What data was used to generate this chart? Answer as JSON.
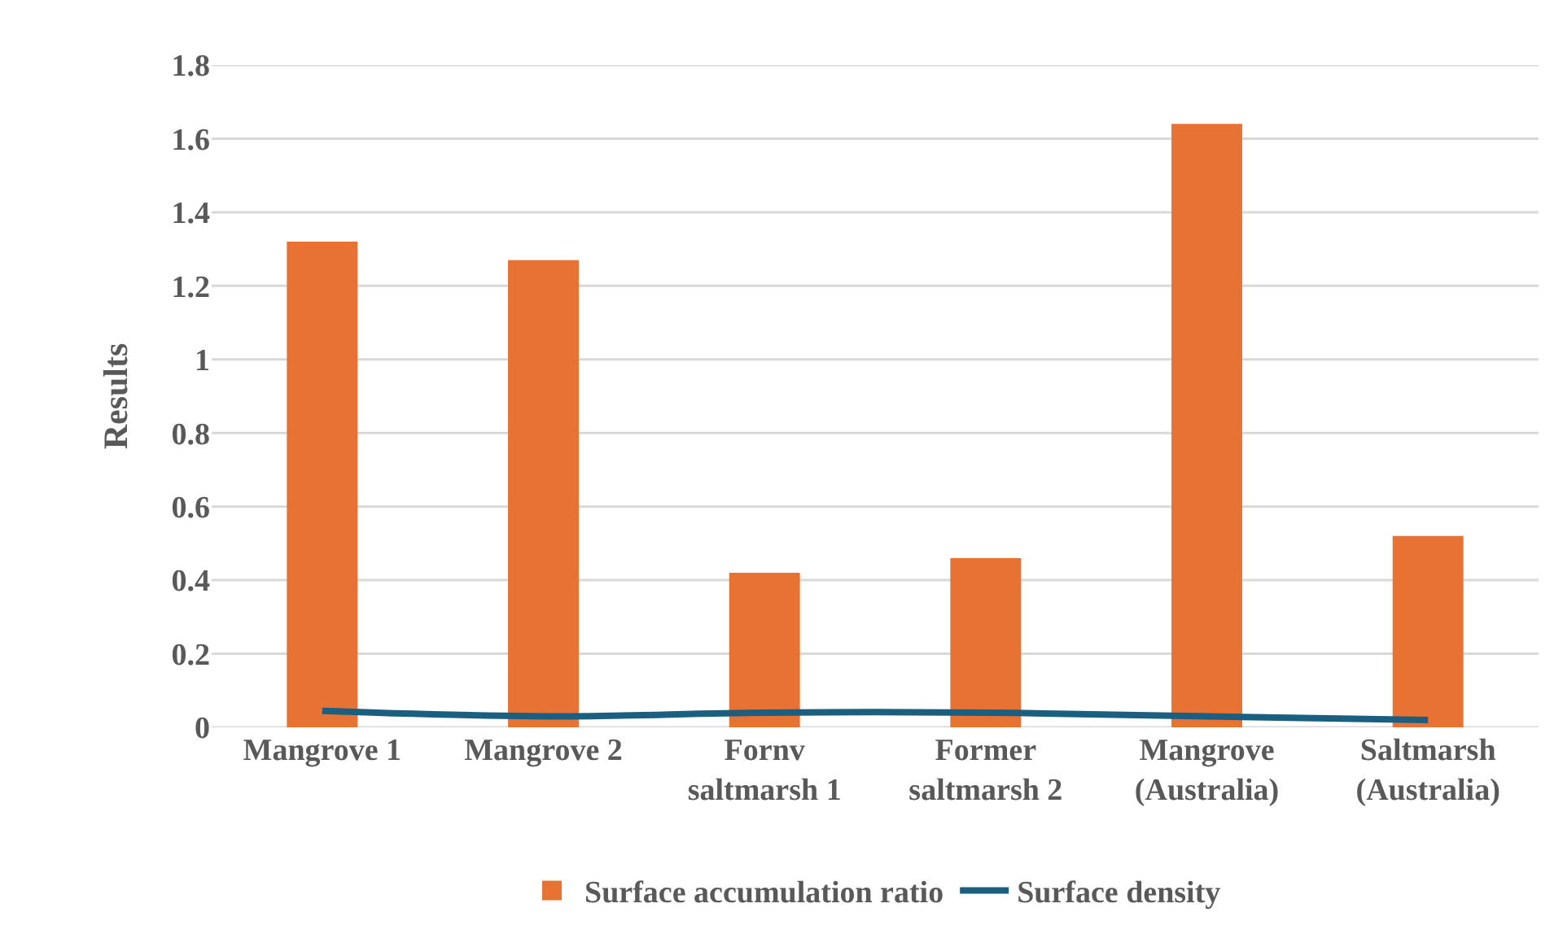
{
  "chart_data": {
    "type": "bar",
    "ylabel": "Results",
    "categories": [
      "Mangrove 1",
      "Mangrove 2",
      "Fornv\nsaltmarsh 1",
      "Former\nsaltmarsh 2",
      "Mangrove\n(Australia)",
      "Saltmarsh\n(Australia)"
    ],
    "series": [
      {
        "name": "Surface accumulation ratio",
        "color": "#e87234",
        "values": [
          1.32,
          1.27,
          0.42,
          0.46,
          1.64,
          0.52
        ]
      },
      {
        "name": "Surface density",
        "type": "line",
        "color": "#1a5f80",
        "values": [
          0.045,
          0.03,
          0.04,
          0.04,
          0.03,
          0.02
        ]
      }
    ],
    "ylim": [
      0,
      1.8
    ],
    "yticks": [
      0,
      0.2,
      0.4,
      0.6,
      0.8,
      1,
      1.2,
      1.4,
      1.6,
      1.8
    ],
    "grid": "y",
    "legend": "bottom"
  }
}
